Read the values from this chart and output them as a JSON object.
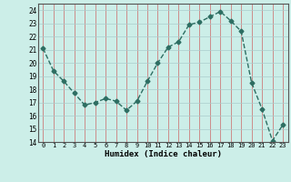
{
  "x": [
    0,
    1,
    2,
    3,
    4,
    5,
    6,
    7,
    8,
    9,
    10,
    11,
    12,
    13,
    14,
    15,
    16,
    17,
    18,
    19,
    20,
    21,
    22,
    23
  ],
  "y": [
    21.1,
    19.4,
    18.6,
    17.7,
    16.8,
    17.0,
    17.3,
    17.1,
    16.4,
    17.1,
    18.6,
    20.0,
    21.2,
    21.6,
    22.9,
    23.1,
    23.5,
    23.9,
    23.2,
    22.4,
    18.5,
    16.5,
    14.1,
    15.3
  ],
  "xlabel": "Humidex (Indice chaleur)",
  "xlim": [
    -0.5,
    23.5
  ],
  "ylim": [
    14,
    24.5
  ],
  "yticks": [
    14,
    15,
    16,
    17,
    18,
    19,
    20,
    21,
    22,
    23,
    24
  ],
  "xticks": [
    0,
    1,
    2,
    3,
    4,
    5,
    6,
    7,
    8,
    9,
    10,
    11,
    12,
    13,
    14,
    15,
    16,
    17,
    18,
    19,
    20,
    21,
    22,
    23
  ],
  "line_color": "#2d6e62",
  "bg_color": "#cceee8",
  "grid_color_x": "#cc6666",
  "grid_color_y": "#aacccc",
  "border_color": "#555555"
}
